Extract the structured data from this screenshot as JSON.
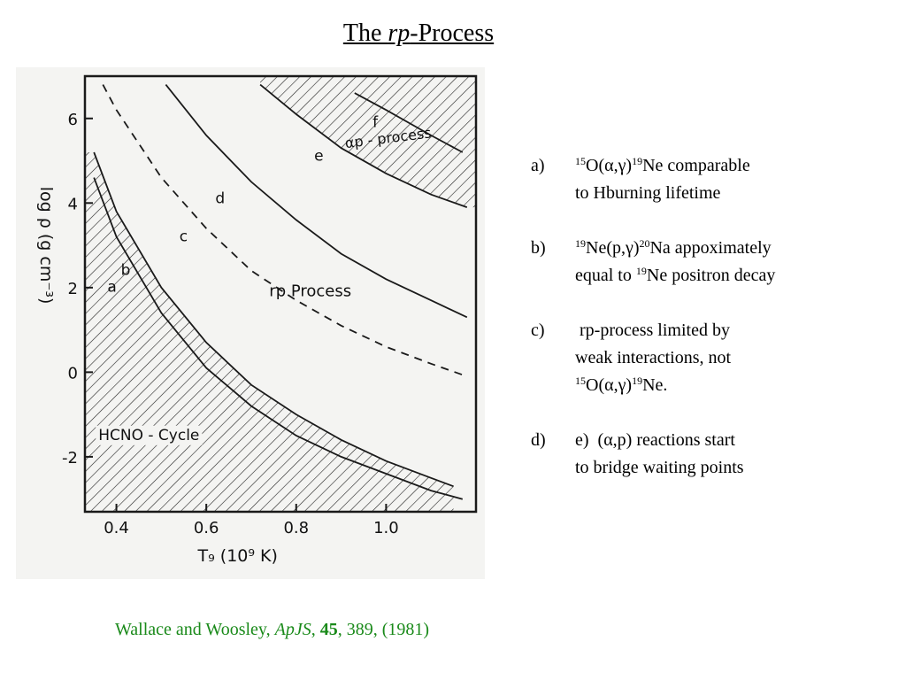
{
  "title": {
    "prefix": "The ",
    "italic": "rp",
    "suffix": "-Process"
  },
  "chart_data": {
    "type": "line",
    "xlabel": "T₉ (10⁹ K)",
    "ylabel": "log ρ (g cm⁻³)",
    "xlim": [
      0.33,
      1.2
    ],
    "ylim": [
      -3.3,
      7.0
    ],
    "x_ticks": [
      0.4,
      0.6,
      0.8,
      1.0
    ],
    "x_tick_labels": [
      "0.4",
      "0.6",
      "0.8",
      "1.0"
    ],
    "y_ticks": [
      -2,
      0,
      2,
      4,
      6
    ],
    "y_tick_labels": [
      "-2",
      "0",
      "2",
      "4",
      "6"
    ],
    "grid": false,
    "series": [
      {
        "name": "a",
        "style": "solid",
        "x": [
          0.35,
          0.4,
          0.5,
          0.6,
          0.7,
          0.8,
          0.9,
          1.0,
          1.1,
          1.17
        ],
        "y": [
          4.6,
          3.2,
          1.4,
          0.1,
          -0.8,
          -1.5,
          -2.0,
          -2.4,
          -2.8,
          -3.0
        ]
      },
      {
        "name": "b",
        "style": "solid",
        "x": [
          0.35,
          0.4,
          0.5,
          0.6,
          0.7,
          0.8,
          0.9,
          1.0,
          1.1,
          1.15
        ],
        "y": [
          5.2,
          3.8,
          2.0,
          0.7,
          -0.3,
          -1.0,
          -1.6,
          -2.1,
          -2.5,
          -2.7
        ]
      },
      {
        "name": "c",
        "style": "dashed",
        "x": [
          0.37,
          0.4,
          0.5,
          0.6,
          0.7,
          0.8,
          0.9,
          1.0,
          1.1,
          1.18
        ],
        "y": [
          6.8,
          6.2,
          4.6,
          3.4,
          2.4,
          1.7,
          1.1,
          0.6,
          0.2,
          -0.1
        ]
      },
      {
        "name": "d",
        "style": "solid",
        "x": [
          0.51,
          0.6,
          0.7,
          0.8,
          0.9,
          1.0,
          1.1,
          1.18
        ],
        "y": [
          6.8,
          5.6,
          4.5,
          3.6,
          2.8,
          2.2,
          1.7,
          1.3
        ]
      },
      {
        "name": "e",
        "style": "solid",
        "x": [
          0.72,
          0.8,
          0.9,
          1.0,
          1.1,
          1.18
        ],
        "y": [
          6.8,
          6.1,
          5.3,
          4.7,
          4.2,
          3.9
        ]
      },
      {
        "name": "f",
        "style": "solid",
        "x": [
          0.93,
          1.0,
          1.1,
          1.17
        ],
        "y": [
          6.6,
          6.2,
          5.6,
          5.2
        ]
      }
    ],
    "regions": [
      {
        "label": "HCNO - Cycle",
        "hatched": true
      },
      {
        "label": "αp - process",
        "hatched": true
      }
    ],
    "annotations": [
      "rp Process"
    ]
  },
  "notes": [
    {
      "label": "a)",
      "line1_segments": [
        "15",
        "O(α,γ)",
        "19",
        "Ne comparable"
      ],
      "line2": "to Hburning lifetime"
    },
    {
      "label": "b)",
      "line1_segments": [
        "19",
        "Ne(p,γ)",
        "20",
        "Na appoximately"
      ],
      "line2_segments": [
        "equal to ",
        "19",
        "Ne positron decay"
      ]
    },
    {
      "label": "c)",
      "line1": " rp-process limited by",
      "line2": "weak interactions, not",
      "line3_segments": [
        "15",
        "O(α,γ)",
        "19",
        "Ne."
      ]
    },
    {
      "label": "d)",
      "line1": "e)  (α,p) reactions start",
      "line2": "to bridge waiting points"
    }
  ],
  "citation": {
    "authors": "Wallace and Woosley, ",
    "journal": "ApJS",
    "sep1": ", ",
    "volume": "45",
    "rest": ", 389, (1981)"
  }
}
